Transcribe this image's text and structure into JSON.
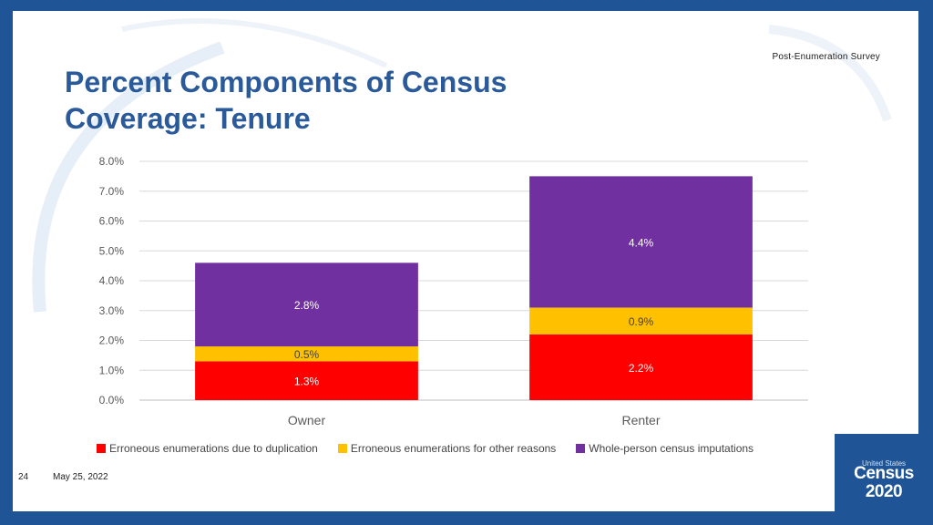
{
  "header": {
    "survey_tag": "Post-Enumeration  Survey"
  },
  "title": {
    "line1": "Percent Components of Census",
    "line2": "Coverage: Tenure"
  },
  "footer": {
    "page_number": "24",
    "date": "May 25, 2022"
  },
  "logo": {
    "small": "United States",
    "big1": "Census",
    "big2": "2020"
  },
  "colors": {
    "duplication": "#ff0000",
    "other": "#ffc000",
    "imputations": "#7030a0",
    "title": "#2a5a9a",
    "frame": "#1f5596"
  },
  "chart_data": {
    "type": "bar",
    "stacked": true,
    "categories": [
      "Owner",
      "Renter"
    ],
    "series": [
      {
        "name": "Erroneous enumerations due to duplication",
        "values": [
          1.3,
          2.2
        ],
        "labels": [
          "1.3%",
          "2.2%"
        ],
        "color": "#ff0000"
      },
      {
        "name": "Erroneous enumerations for other reasons",
        "values": [
          0.5,
          0.9
        ],
        "labels": [
          "0.5%",
          "0.9%"
        ],
        "color": "#ffc000"
      },
      {
        "name": "Whole-person census imputations",
        "values": [
          2.8,
          4.4
        ],
        "labels": [
          "2.8%",
          "4.4%"
        ],
        "color": "#7030a0"
      }
    ],
    "yticks": [
      "0.0%",
      "1.0%",
      "2.0%",
      "3.0%",
      "4.0%",
      "5.0%",
      "6.0%",
      "7.0%",
      "8.0%"
    ],
    "ylim": [
      0,
      8
    ],
    "grid": true,
    "legend": "bottom",
    "title": "",
    "xlabel": "",
    "ylabel": ""
  }
}
